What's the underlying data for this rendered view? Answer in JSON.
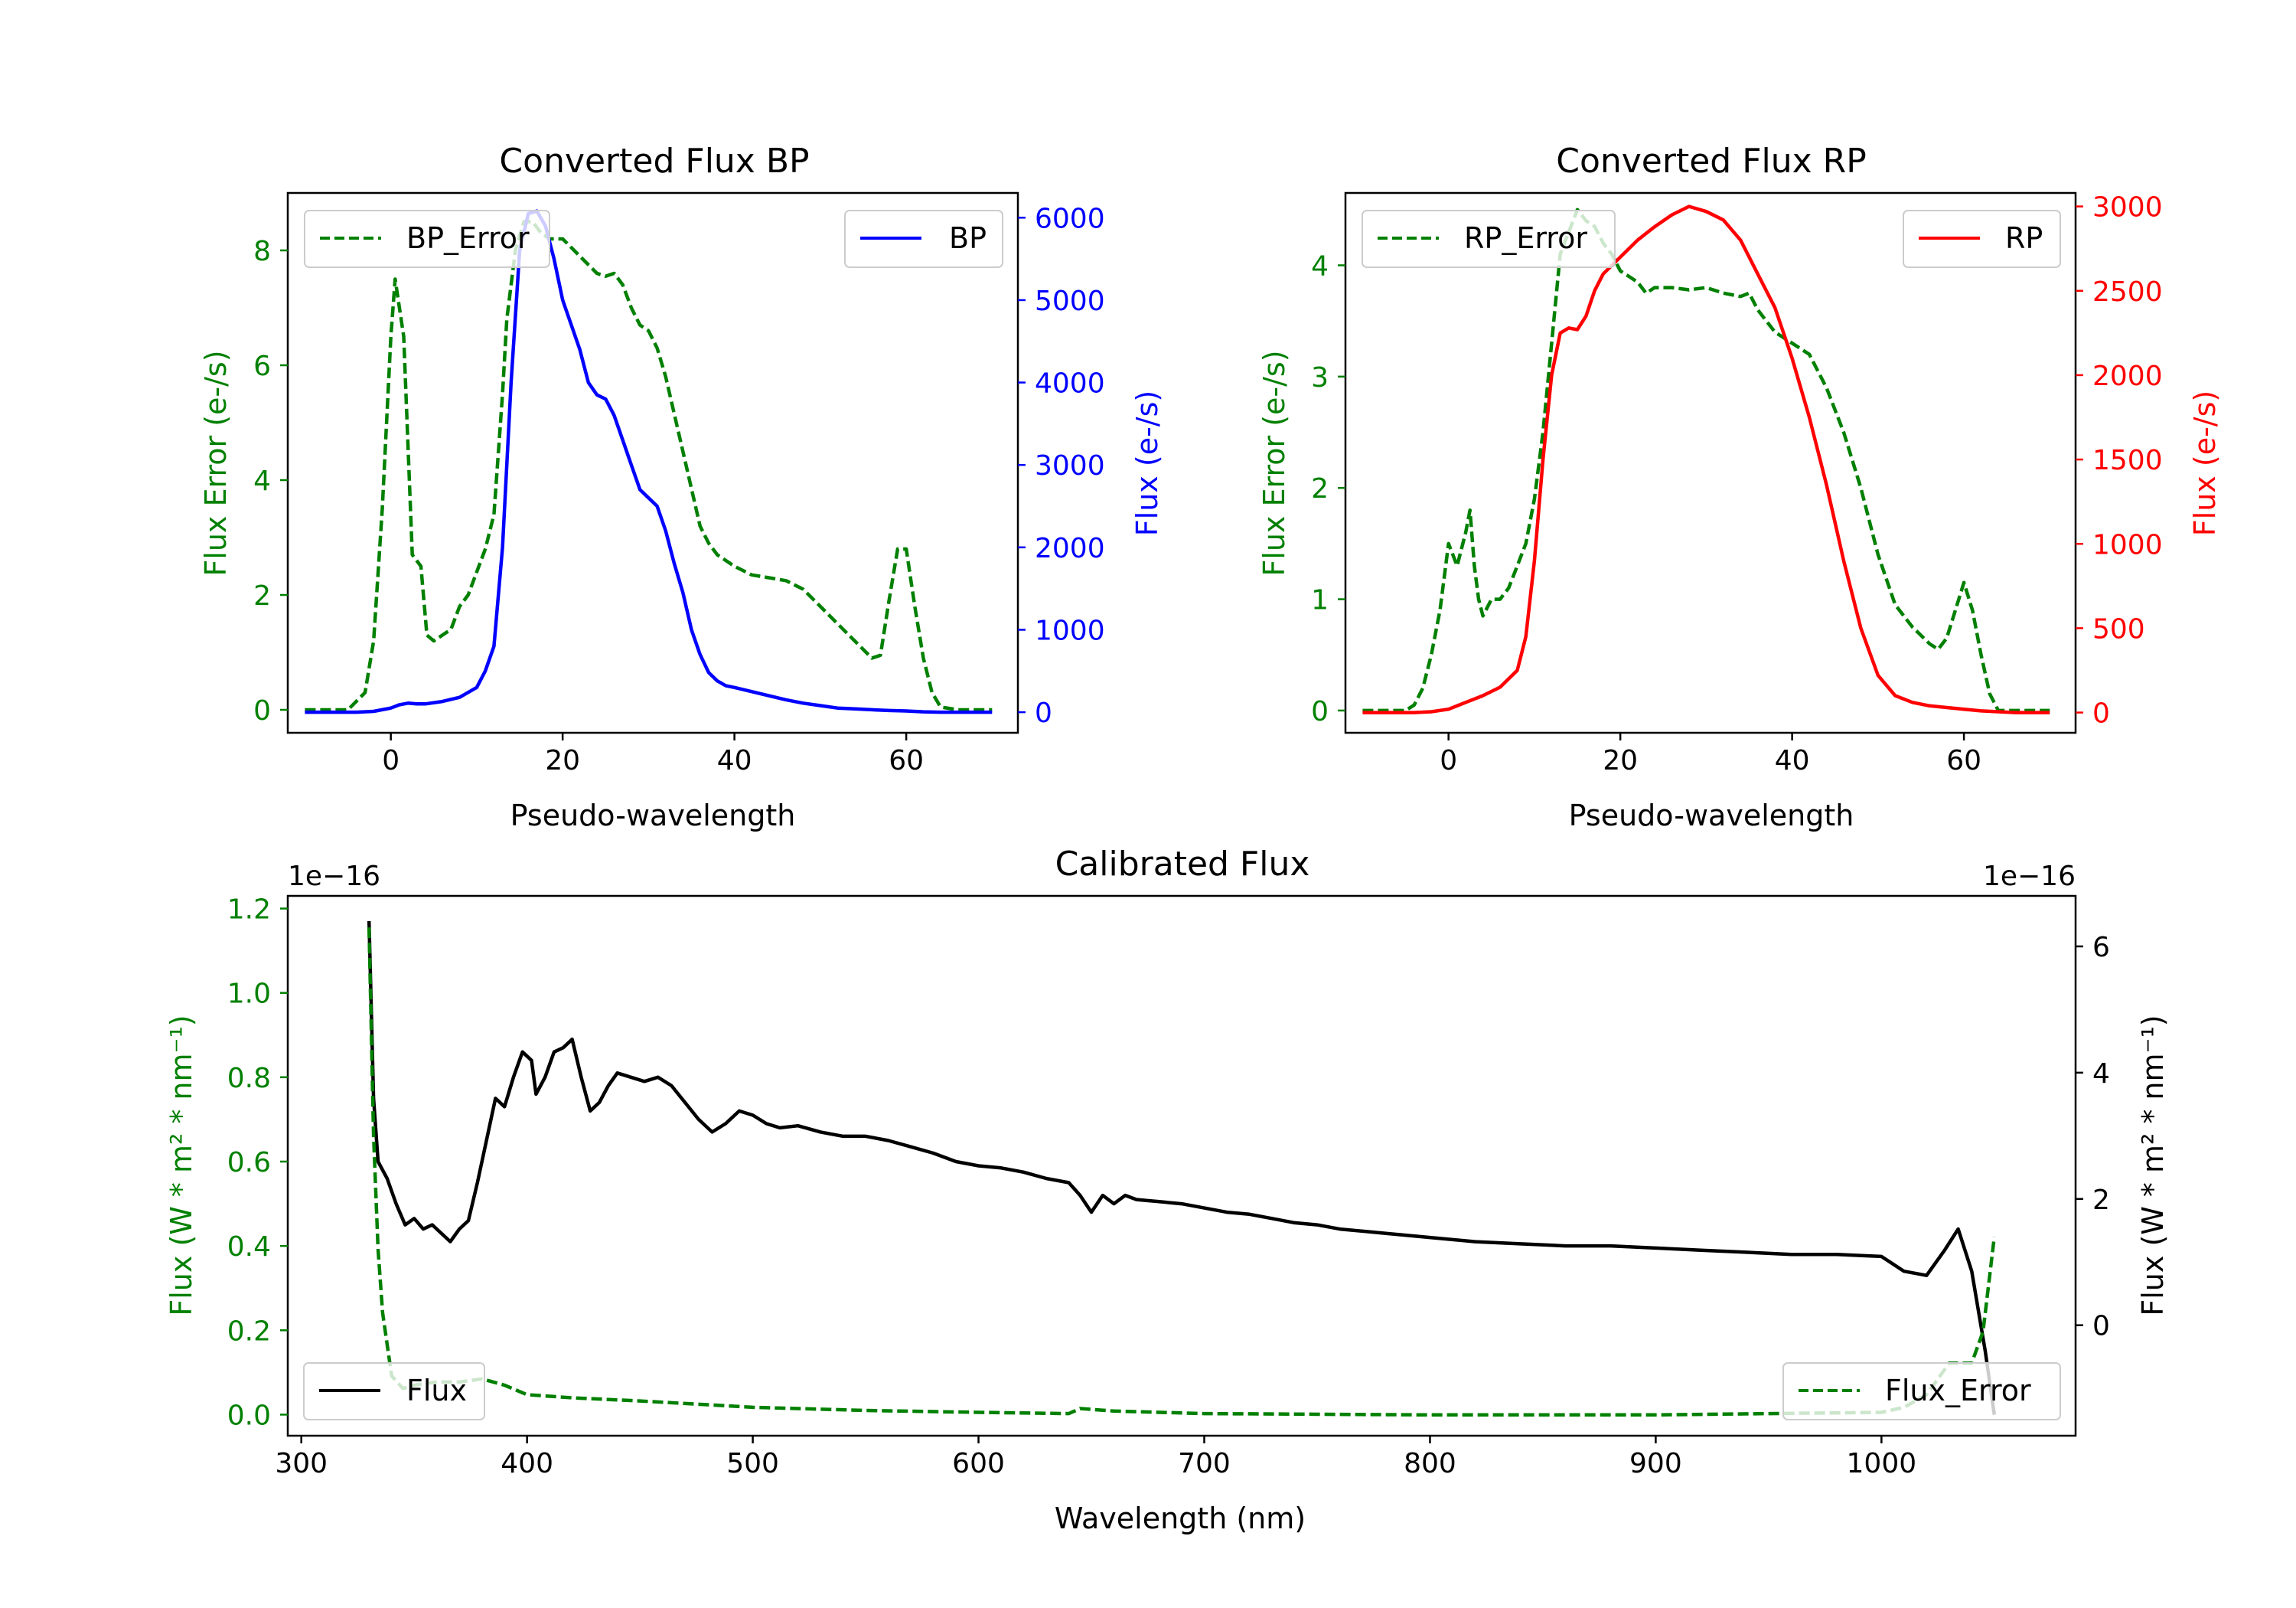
{
  "colors": {
    "green": "#008000",
    "blue": "#0000ff",
    "red": "#ff0000",
    "black": "#000000"
  },
  "chart_data": [
    {
      "type": "line",
      "title": "Converted Flux BP",
      "xlabel": "Pseudo-wavelength",
      "ylabel_left": "Flux Error (e-/s)",
      "ylabel_right": "Flux (e-/s)",
      "xlim": [
        -12,
        73
      ],
      "ylim_left": [
        -0.4,
        9.0
      ],
      "ylim_right": [
        -250,
        6300
      ],
      "xticks": [
        0,
        20,
        40,
        60
      ],
      "yticks_left": [
        0,
        2,
        4,
        6,
        8
      ],
      "yticks_right": [
        0,
        1000,
        2000,
        3000,
        4000,
        5000,
        6000
      ],
      "legend_left": "top-left",
      "legend_right": "top-right",
      "series": [
        {
          "name": "BP_Error",
          "axis": "left",
          "color": "#008000",
          "dashed": true,
          "x": [
            -10,
            -5,
            -3,
            -2,
            -1,
            0,
            0.5,
            1.5,
            2.5,
            3.5,
            4.2,
            5,
            6,
            7,
            8,
            9,
            10,
            11,
            12,
            13,
            13.5,
            14.5,
            15.5,
            16.5,
            17.5,
            18.5,
            20,
            22,
            24,
            25,
            26,
            27,
            28,
            29,
            30,
            31,
            32,
            34,
            36,
            37,
            38,
            40,
            42,
            44,
            46,
            48,
            50,
            52,
            54,
            56,
            57,
            58,
            59,
            60,
            61,
            62,
            63,
            64,
            66,
            68,
            70
          ],
          "y": [
            0,
            0,
            0.3,
            1.2,
            3.5,
            6.5,
            7.5,
            6.5,
            2.7,
            2.5,
            1.3,
            1.2,
            1.3,
            1.4,
            1.8,
            2.0,
            2.4,
            2.8,
            3.4,
            5.5,
            6.8,
            8.0,
            8.5,
            8.5,
            8.3,
            8.2,
            8.2,
            7.9,
            7.6,
            7.55,
            7.6,
            7.4,
            7.0,
            6.7,
            6.6,
            6.3,
            5.8,
            4.5,
            3.2,
            2.9,
            2.7,
            2.5,
            2.35,
            2.3,
            2.25,
            2.1,
            1.8,
            1.5,
            1.2,
            0.9,
            0.95,
            1.9,
            2.8,
            2.8,
            1.8,
            0.9,
            0.3,
            0.05,
            0,
            0,
            0
          ]
        },
        {
          "name": "BP",
          "axis": "right",
          "color": "#0000ff",
          "dashed": false,
          "x": [
            -10,
            -4,
            -2,
            0,
            1,
            2,
            3,
            4,
            6,
            8,
            10,
            11,
            12,
            13,
            14,
            15,
            16,
            17,
            18,
            19,
            20,
            21,
            22,
            23,
            24,
            25,
            26,
            27,
            28,
            29,
            30,
            31,
            32,
            33,
            34,
            35,
            36,
            37,
            38,
            39,
            40,
            42,
            44,
            46,
            48,
            50,
            52,
            54,
            56,
            58,
            60,
            62,
            64,
            66,
            68,
            70
          ],
          "y": [
            0,
            0,
            10,
            50,
            90,
            110,
            100,
            100,
            130,
            180,
            300,
            500,
            800,
            2000,
            4000,
            5600,
            6050,
            6080,
            5900,
            5500,
            5000,
            4700,
            4400,
            4000,
            3850,
            3800,
            3600,
            3300,
            3000,
            2700,
            2600,
            2500,
            2200,
            1800,
            1450,
            1000,
            700,
            480,
            380,
            320,
            300,
            250,
            200,
            150,
            110,
            80,
            50,
            40,
            30,
            20,
            15,
            5,
            0,
            0,
            0,
            0
          ]
        }
      ]
    },
    {
      "type": "line",
      "title": "Converted Flux RP",
      "xlabel": "Pseudo-wavelength",
      "ylabel_left": "Flux Error (e-/s)",
      "ylabel_right": "Flux (e-/s)",
      "xlim": [
        -12,
        73
      ],
      "ylim_left": [
        -0.2,
        4.65
      ],
      "ylim_right": [
        -120,
        3080
      ],
      "xticks": [
        0,
        20,
        40,
        60
      ],
      "yticks_left": [
        0,
        1,
        2,
        3,
        4
      ],
      "yticks_right": [
        0,
        500,
        1000,
        1500,
        2000,
        2500,
        3000
      ],
      "legend_left": "top-left",
      "legend_right": "top-right",
      "series": [
        {
          "name": "RP_Error",
          "axis": "left",
          "color": "#008000",
          "dashed": true,
          "x": [
            -10,
            -5,
            -4,
            -3,
            -2,
            -1,
            0,
            1,
            2,
            2.5,
            3,
            3.5,
            4,
            5,
            6,
            7,
            8,
            9,
            10,
            11,
            12,
            13,
            14,
            15,
            16,
            17,
            18,
            19,
            20,
            21,
            22,
            23,
            24,
            26,
            28,
            30,
            32,
            34,
            35,
            36,
            38,
            40,
            42,
            44,
            46,
            48,
            50,
            52,
            54,
            56,
            57,
            58,
            59,
            60,
            61,
            62,
            63,
            64,
            66,
            68,
            70
          ],
          "y": [
            0,
            0,
            0.05,
            0.2,
            0.5,
            0.9,
            1.5,
            1.3,
            1.6,
            1.8,
            1.3,
            1.0,
            0.85,
            1.0,
            1.0,
            1.1,
            1.3,
            1.5,
            1.9,
            2.5,
            3.3,
            4.1,
            4.3,
            4.5,
            4.4,
            4.35,
            4.2,
            4.1,
            3.95,
            3.9,
            3.85,
            3.75,
            3.8,
            3.8,
            3.78,
            3.8,
            3.75,
            3.72,
            3.75,
            3.6,
            3.4,
            3.3,
            3.2,
            2.9,
            2.5,
            2.0,
            1.4,
            0.95,
            0.75,
            0.6,
            0.55,
            0.65,
            0.9,
            1.15,
            0.9,
            0.5,
            0.15,
            0,
            0,
            0,
            0
          ]
        },
        {
          "name": "RP",
          "axis": "right",
          "color": "#ff0000",
          "dashed": false,
          "x": [
            -10,
            -4,
            -2,
            0,
            2,
            4,
            6,
            8,
            9,
            10,
            11,
            12,
            13,
            14,
            15,
            16,
            17,
            18,
            20,
            22,
            24,
            26,
            28,
            30,
            32,
            34,
            36,
            38,
            40,
            42,
            44,
            46,
            48,
            50,
            52,
            54,
            56,
            58,
            60,
            62,
            64,
            66,
            68,
            70
          ],
          "y": [
            0,
            0,
            5,
            20,
            60,
            100,
            150,
            250,
            450,
            900,
            1500,
            2000,
            2250,
            2280,
            2270,
            2350,
            2500,
            2600,
            2700,
            2800,
            2880,
            2950,
            3000,
            2970,
            2920,
            2800,
            2600,
            2400,
            2100,
            1750,
            1350,
            900,
            500,
            220,
            100,
            60,
            40,
            30,
            20,
            10,
            5,
            0,
            0,
            0
          ]
        }
      ]
    },
    {
      "type": "line",
      "title": "Calibrated Flux",
      "xlabel": "Wavelength (nm)",
      "ylabel_left": "Flux (W * m² * nm⁻¹)",
      "ylabel_right": "Flux (W * m² * nm⁻¹)",
      "offset_left": "1e−16",
      "offset_right": "1e−16",
      "xlim": [
        294,
        1086
      ],
      "ylim_left": [
        -0.05,
        1.23
      ],
      "ylim_right": [
        -1.75,
        6.8
      ],
      "xticks": [
        300,
        400,
        500,
        600,
        700,
        800,
        900,
        1000
      ],
      "yticks_left": [
        0.0,
        0.2,
        0.4,
        0.6,
        0.8,
        1.0,
        1.2
      ],
      "yticks_right": [
        0,
        2,
        4,
        6
      ],
      "legend_left": "bottom-left",
      "legend_right": "bottom-right",
      "series": [
        {
          "name": "Flux",
          "axis": "left",
          "color": "#000000",
          "dashed": false,
          "x": [
            330,
            332,
            334,
            338,
            342,
            346,
            350,
            354,
            358,
            362,
            366,
            370,
            374,
            378,
            382,
            386,
            390,
            394,
            398,
            402,
            404,
            408,
            412,
            416,
            420,
            424,
            428,
            432,
            436,
            440,
            446,
            452,
            458,
            464,
            470,
            476,
            482,
            488,
            494,
            500,
            506,
            512,
            520,
            530,
            540,
            550,
            560,
            570,
            580,
            590,
            600,
            610,
            620,
            630,
            640,
            645,
            650,
            655,
            660,
            665,
            670,
            680,
            690,
            700,
            710,
            720,
            730,
            740,
            750,
            760,
            780,
            800,
            820,
            840,
            860,
            880,
            900,
            920,
            940,
            960,
            980,
            1000,
            1010,
            1020,
            1028,
            1034,
            1040,
            1046,
            1050
          ],
          "y": [
            1.17,
            0.75,
            0.6,
            0.56,
            0.5,
            0.45,
            0.465,
            0.44,
            0.45,
            0.43,
            0.41,
            0.44,
            0.46,
            0.55,
            0.65,
            0.75,
            0.73,
            0.8,
            0.86,
            0.84,
            0.76,
            0.8,
            0.86,
            0.87,
            0.89,
            0.8,
            0.72,
            0.74,
            0.78,
            0.81,
            0.8,
            0.79,
            0.8,
            0.78,
            0.74,
            0.7,
            0.67,
            0.69,
            0.72,
            0.71,
            0.69,
            0.68,
            0.685,
            0.67,
            0.66,
            0.66,
            0.65,
            0.635,
            0.62,
            0.6,
            0.59,
            0.585,
            0.575,
            0.56,
            0.55,
            0.52,
            0.48,
            0.52,
            0.5,
            0.52,
            0.51,
            0.505,
            0.5,
            0.49,
            0.48,
            0.475,
            0.465,
            0.455,
            0.45,
            0.44,
            0.43,
            0.42,
            0.41,
            0.405,
            0.4,
            0.4,
            0.395,
            0.39,
            0.385,
            0.38,
            0.38,
            0.375,
            0.34,
            0.33,
            0.39,
            0.44,
            0.34,
            0.15,
            0.0
          ]
        },
        {
          "name": "Flux_Error",
          "axis": "right",
          "color": "#008000",
          "dashed": true,
          "x": [
            330,
            332,
            334,
            336,
            340,
            345,
            350,
            360,
            370,
            380,
            390,
            400,
            420,
            450,
            500,
            550,
            600,
            640,
            645,
            660,
            700,
            800,
            900,
            950,
            1000,
            1010,
            1020,
            1030,
            1040,
            1045,
            1050
          ],
          "y": [
            6.3,
            3.0,
            1.2,
            0.2,
            -0.8,
            -1.0,
            -0.95,
            -0.9,
            -0.9,
            -0.85,
            -0.95,
            -1.1,
            -1.15,
            -1.2,
            -1.3,
            -1.35,
            -1.38,
            -1.4,
            -1.32,
            -1.36,
            -1.4,
            -1.42,
            -1.42,
            -1.4,
            -1.38,
            -1.3,
            -1.1,
            -0.6,
            -0.6,
            -0.1,
            1.4
          ]
        }
      ]
    }
  ]
}
